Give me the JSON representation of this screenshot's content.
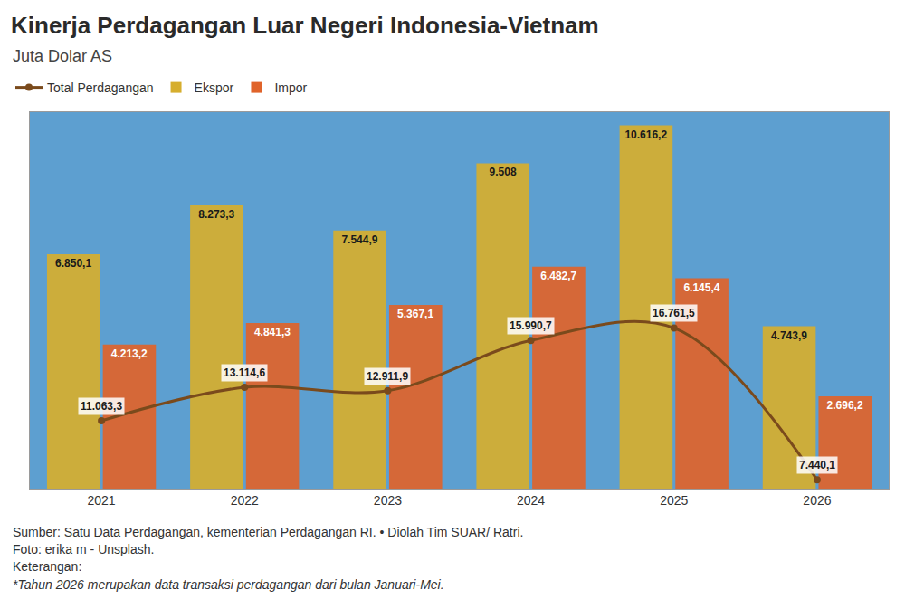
{
  "chart_data": {
    "type": "bar",
    "title": "Kinerja Perdagangan Luar Negeri Indonesia-Vietnam",
    "subtitle": "Juta Dolar AS",
    "categories": [
      "2021",
      "2022",
      "2023",
      "2024",
      "2025",
      "2026"
    ],
    "series": [
      {
        "name": "Total Perdagangan",
        "type": "line",
        "axis": "y2",
        "color": "#7a4a1c",
        "marker": "circle",
        "line_style": "solid",
        "values": [
          11063.3,
          13114.6,
          12911.9,
          15990.7,
          16761.5,
          7440.1
        ],
        "value_labels": [
          "11.063,3",
          "13.114,6",
          "12.911,9",
          "15.990,7",
          "16.761,5",
          "7.440,1"
        ]
      },
      {
        "name": "Ekspor",
        "type": "bar",
        "color": "#d6ae2e",
        "values": [
          6850.1,
          8273.3,
          7544.9,
          9508,
          10616.2,
          4743.9
        ],
        "value_labels": [
          "6.850,1",
          "8.273,3",
          "7.544,9",
          "9.508",
          "10.616,2",
          "4.743,9"
        ]
      },
      {
        "name": "Impor",
        "type": "bar",
        "color": "#e0632a",
        "values": [
          4213.2,
          4841.3,
          5367.1,
          6482.7,
          6145.4,
          2696.2
        ],
        "value_labels": [
          "4.213,2",
          "4.841,3",
          "5.367,1",
          "6.482,7",
          "6.145,4",
          "2.696,2"
        ]
      }
    ],
    "ylim": [
      0,
      11000
    ],
    "y2lim": [
      6900,
      30000
    ],
    "tick_labels": "x",
    "grid": false,
    "legend": "top-left",
    "data_labels": true,
    "annotations": [
      "Sumber: Satu Data Perdagangan, kementerian Perdagangan RI. • Diolah Tim SUAR/ Ratri.",
      "Foto: erika m - Unsplash.",
      "Keterangan:",
      "*Tahun 2026 merupakan data transaksi perdagangan dari bulan Januari-Mei."
    ]
  }
}
